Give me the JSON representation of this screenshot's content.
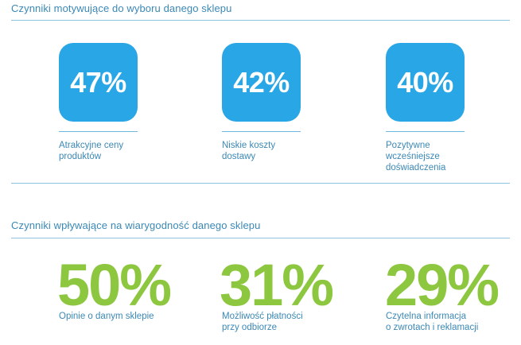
{
  "section1": {
    "title": "Czynniki motywujące do wyboru danego sklepu",
    "stats": [
      {
        "value": "47%",
        "label_lines": [
          "Atrakcyjne ceny",
          "produktów"
        ]
      },
      {
        "value": "42%",
        "label_lines": [
          "Niskie koszty",
          "dostawy"
        ]
      },
      {
        "value": "40%",
        "label_lines": [
          "Pozytywne",
          "wcześniejsze",
          "doświadczenia"
        ]
      }
    ]
  },
  "section2": {
    "title": "Czynniki wpływające na wiarygodność danego sklepu",
    "stats": [
      {
        "value": "50%",
        "label_lines": [
          "Opinie o danym sklepie"
        ]
      },
      {
        "value": "31%",
        "label_lines": [
          "Możliwość płatności",
          "przy odbiorze"
        ]
      },
      {
        "value": "29%",
        "label_lines": [
          "Czytelna informacja",
          "o zwrotach i reklamacji"
        ]
      }
    ]
  },
  "colors": {
    "box_blue": "#29a6e6",
    "text_blue": "#3b88b5",
    "green": "#8dc63f",
    "rule": "#8fc4e0"
  },
  "chart_data": [
    {
      "type": "table",
      "title": "Czynniki motywujące do wyboru danego sklepu",
      "categories": [
        "Atrakcyjne ceny produktów",
        "Niskie koszty dostawy",
        "Pozytywne wcześniejsze doświadczenia"
      ],
      "values": [
        47,
        42,
        40
      ]
    },
    {
      "type": "table",
      "title": "Czynniki wpływające na wiarygodność danego sklepu",
      "categories": [
        "Opinie o danym sklepie",
        "Możliwość płatności przy odbiorze",
        "Czytelna informacja o zwrotach i reklamacji"
      ],
      "values": [
        50,
        31,
        29
      ]
    }
  ]
}
